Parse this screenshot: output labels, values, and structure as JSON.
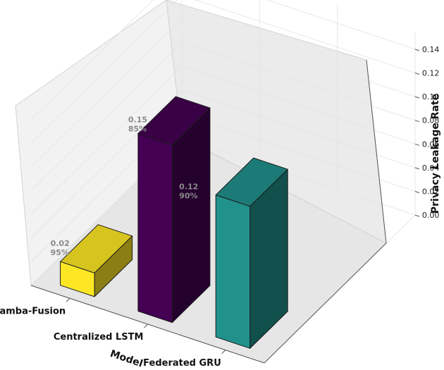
{
  "chart_data": {
    "type": "bar",
    "projection": "3d",
    "categories": [
      "Mamba-Fusion",
      "Centralized LSTM",
      "Federated GRU"
    ],
    "series": [
      {
        "values": [
          0.02,
          0.15,
          0.12
        ]
      }
    ],
    "annotations": [
      {
        "value_text": "0.02",
        "percent_text": "95%"
      },
      {
        "value_text": "0.15",
        "percent_text": "85%"
      },
      {
        "value_text": "0.12",
        "percent_text": "90%"
      }
    ],
    "zlabel": "Privacy Leakage Rate",
    "xlabel": "Model",
    "zlim": [
      0,
      0.15
    ],
    "z_ticks": [
      "0.00",
      "0.02",
      "0.04",
      "0.06",
      "0.08",
      "0.10",
      "0.12",
      "0.14"
    ],
    "bar_colors": [
      "#fde725",
      "#440154",
      "#21918c"
    ],
    "grid": true
  }
}
